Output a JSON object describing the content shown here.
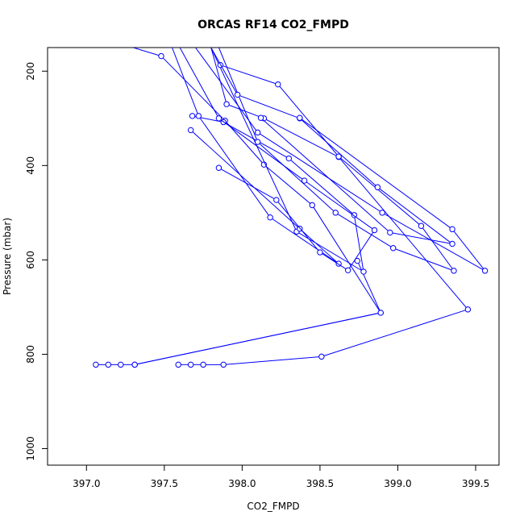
{
  "chart_data": {
    "type": "line",
    "title": "ORCAS RF14 CO2_FMPD",
    "xlabel": "CO2_FMPD",
    "ylabel": "Pressure (mbar)",
    "xlim": [
      396.75,
      399.65
    ],
    "ylim": [
      1035,
      150
    ],
    "y_reversed": true,
    "grid": false,
    "legend": "none",
    "color": "#0000ff",
    "marker": "open-circle",
    "x_ticks": [
      397.0,
      397.5,
      398.0,
      398.5,
      399.0,
      399.5
    ],
    "x_tick_labels": [
      "397.0",
      "397.5",
      "398.0",
      "398.5",
      "399.0",
      "399.5"
    ],
    "y_ticks": [
      200,
      400,
      600,
      800,
      1000
    ],
    "y_tick_labels": [
      "200",
      "400",
      "600",
      "800",
      "1000"
    ],
    "series": [
      {
        "x": [
          397.06,
          397.14,
          397.22,
          397.31,
          398.89,
          398.74
        ],
        "y": [
          822,
          822,
          822,
          822,
          712,
          602
        ],
        "start": [
          397.06,
          822
        ],
        "end_clip": [
          398.74,
          602
        ]
      },
      {
        "x": [
          397.31,
          398.89,
          398.45,
          398.14,
          397.89,
          397.48,
          397.3
        ],
        "y": [
          822,
          712,
          484,
          398,
          305,
          168,
          150
        ]
      },
      {
        "x": [
          397.59,
          397.67,
          397.75,
          397.88,
          398.51,
          399.45,
          398.62,
          398.14,
          397.9,
          397.8
        ],
        "y": [
          822,
          822,
          822,
          822,
          805,
          705,
          382,
          300,
          270,
          150
        ]
      },
      {
        "x": [
          397.68,
          397.88,
          398.3,
          398.72,
          398.78,
          398.35,
          397.8
        ],
        "y": [
          295,
          308,
          385,
          505,
          625,
          540,
          150
        ]
      },
      {
        "x": [
          397.67,
          398.37,
          398.62,
          398.18,
          397.72,
          397.55
        ],
        "y": [
          325,
          534,
          608,
          510,
          295,
          150
        ]
      },
      {
        "x": [
          397.85,
          398.22,
          398.5,
          398.68,
          398.85,
          398.4,
          397.85,
          397.6
        ],
        "y": [
          405,
          473,
          584,
          622,
          537,
          432,
          300,
          150
        ]
      },
      {
        "x": [
          397.86,
          398.23,
          398.62,
          399.15,
          399.36,
          398.97,
          398.6,
          398.1,
          397.85
        ],
        "y": [
          187,
          228,
          381,
          528,
          623,
          575,
          500,
          350,
          150
        ]
      },
      {
        "x": [
          398.12,
          398.95,
          399.35,
          398.87,
          398.37,
          397.97,
          397.8
        ],
        "y": [
          299,
          542,
          566,
          446,
          300,
          250,
          150
        ]
      },
      {
        "x": [
          398.37,
          399.35,
          399.56,
          398.9,
          398.1,
          397.7
        ],
        "y": [
          299,
          535,
          623,
          500,
          330,
          150
        ]
      }
    ]
  }
}
